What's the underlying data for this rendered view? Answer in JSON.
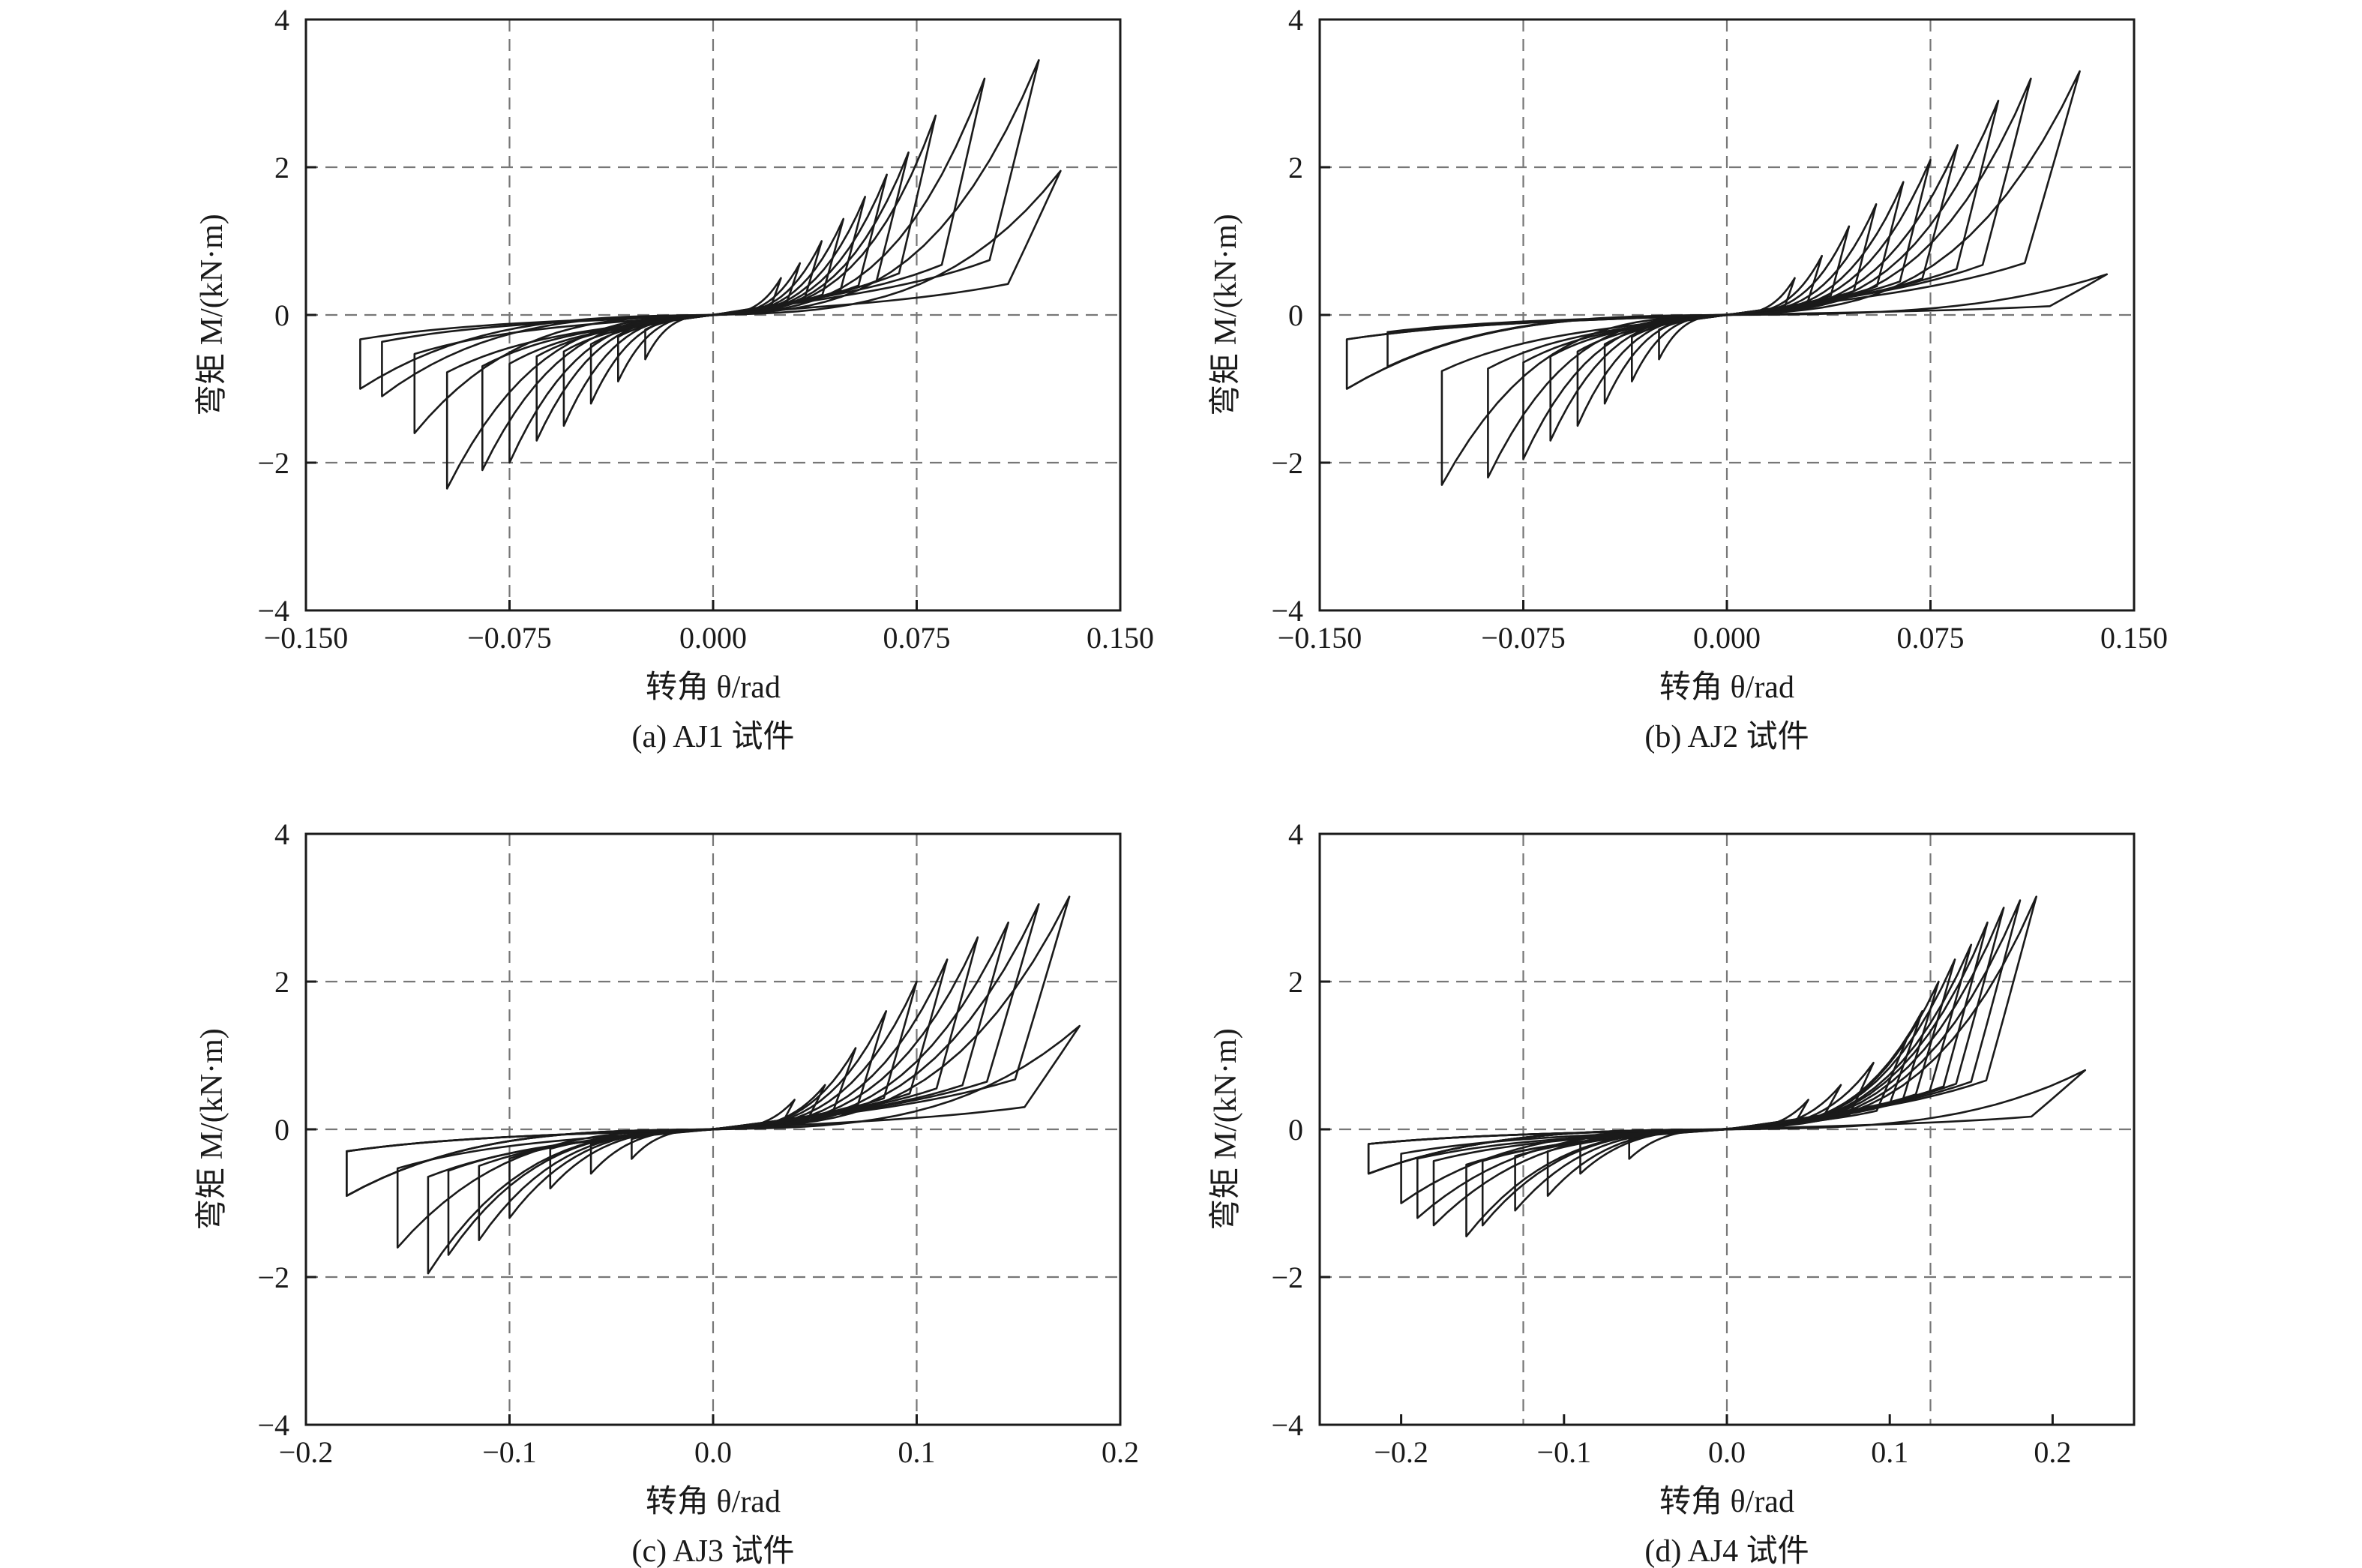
{
  "chart_data": [
    {
      "type": "line",
      "caption": "(a) AJ1 试件",
      "xlabel": "转角 θ/rad",
      "ylabel": "弯矩 M/(kN·m)",
      "xlim": [
        -0.15,
        0.15
      ],
      "ylim": [
        -4,
        4
      ],
      "xticks": [
        -0.15,
        -0.075,
        0,
        0.075,
        0.15
      ],
      "xtick_labels": [
        "−0.150",
        "−0.075",
        "0.000",
        "0.075",
        "0.150"
      ],
      "yticks": [
        -4,
        -2,
        0,
        2,
        4
      ],
      "ytick_labels": [
        "−4",
        "−2",
        "0",
        "2",
        "4"
      ],
      "grid": true,
      "series": [
        {
          "amplitudes": [
            0.025,
            0.032,
            0.04,
            0.048,
            0.056,
            0.064,
            0.072,
            0.082,
            0.1,
            0.12,
            0.128
          ],
          "positive_peaks": [
            0.5,
            0.7,
            1.0,
            1.3,
            1.6,
            1.9,
            2.2,
            2.7,
            3.2,
            3.45,
            1.95
          ],
          "negative_amplitudes": [
            -0.025,
            -0.035,
            -0.045,
            -0.055,
            -0.065,
            -0.075,
            -0.085,
            -0.098,
            -0.11,
            -0.122,
            -0.13
          ],
          "negative_peaks": [
            -0.6,
            -0.9,
            -1.2,
            -1.5,
            -1.7,
            -2.0,
            -2.1,
            -2.35,
            -1.6,
            -1.1,
            -1.0
          ]
        }
      ]
    },
    {
      "type": "line",
      "caption": "(b) AJ2 试件",
      "xlabel": "转角 θ/rad",
      "ylabel": "弯矩 M/(kN·m)",
      "xlim": [
        -0.15,
        0.15
      ],
      "ylim": [
        -4,
        4
      ],
      "xticks": [
        -0.15,
        -0.075,
        0,
        0.075,
        0.15
      ],
      "xtick_labels": [
        "−0.150",
        "−0.075",
        "0.000",
        "0.075",
        "0.150"
      ],
      "yticks": [
        -4,
        -2,
        0,
        2,
        4
      ],
      "ytick_labels": [
        "−4",
        "−2",
        "0",
        "2",
        "4"
      ],
      "grid": true,
      "series": [
        {
          "amplitudes": [
            0.025,
            0.035,
            0.045,
            0.055,
            0.065,
            0.075,
            0.085,
            0.1,
            0.112,
            0.13,
            0.14
          ],
          "positive_peaks": [
            0.5,
            0.8,
            1.2,
            1.5,
            1.8,
            2.1,
            2.3,
            2.9,
            3.2,
            3.3,
            0.55
          ],
          "negative_amplitudes": [
            -0.025,
            -0.035,
            -0.045,
            -0.055,
            -0.065,
            -0.075,
            -0.088,
            -0.105,
            -0.125,
            -0.14
          ],
          "negative_peaks": [
            -0.6,
            -0.9,
            -1.2,
            -1.5,
            -1.7,
            -1.95,
            -2.2,
            -2.3,
            -0.7,
            -1.0
          ]
        }
      ]
    },
    {
      "type": "line",
      "caption": "(c) AJ3 试件",
      "xlabel": "转角 θ/rad",
      "ylabel": "弯矩 M/(kN·m)",
      "xlim": [
        -0.2,
        0.2
      ],
      "ylim": [
        -4,
        4
      ],
      "xticks": [
        -0.2,
        -0.1,
        0,
        0.1,
        0.2
      ],
      "xtick_labels": [
        "−0.2",
        "−0.1",
        "0.0",
        "0.1",
        "0.2"
      ],
      "yticks": [
        -4,
        -2,
        0,
        2,
        4
      ],
      "ytick_labels": [
        "−4",
        "−2",
        "0",
        "2",
        "4"
      ],
      "grid": true,
      "series": [
        {
          "amplitudes": [
            0.04,
            0.055,
            0.07,
            0.085,
            0.1,
            0.115,
            0.13,
            0.145,
            0.16,
            0.175,
            0.18
          ],
          "positive_peaks": [
            0.4,
            0.6,
            1.1,
            1.6,
            2.0,
            2.3,
            2.6,
            2.8,
            3.05,
            3.15,
            1.4
          ],
          "negative_amplitudes": [
            -0.04,
            -0.06,
            -0.08,
            -0.1,
            -0.115,
            -0.13,
            -0.14,
            -0.155,
            -0.18
          ],
          "negative_peaks": [
            -0.4,
            -0.6,
            -0.8,
            -1.2,
            -1.5,
            -1.7,
            -1.95,
            -1.6,
            -0.9
          ]
        }
      ]
    },
    {
      "type": "line",
      "caption": "(d) AJ4 试件",
      "xlabel": "转角 θ/rad",
      "ylabel": "弯矩 M/(kN·m)",
      "xlim": [
        -0.25,
        0.25
      ],
      "ylim": [
        -4,
        4
      ],
      "xticks": [
        -0.2,
        -0.1,
        0,
        0.1,
        0.2
      ],
      "xtick_labels": [
        "−0.2",
        "−0.1",
        "0.0",
        "0.1",
        "0.2"
      ],
      "yticks": [
        -4,
        -2,
        0,
        2,
        4
      ],
      "ytick_labels": [
        "−4",
        "−2",
        "0",
        "2",
        "4"
      ],
      "gridlines_x": [
        -0.125,
        0.125
      ],
      "grid": true,
      "series": [
        {
          "amplitudes": [
            0.05,
            0.07,
            0.09,
            0.11,
            0.12,
            0.13,
            0.14,
            0.15,
            0.16,
            0.17,
            0.18,
            0.19,
            0.22
          ],
          "positive_peaks": [
            0.4,
            0.6,
            0.9,
            1.2,
            1.6,
            2.0,
            2.3,
            2.5,
            2.8,
            3.0,
            3.1,
            3.15,
            0.8
          ],
          "negative_amplitudes": [
            -0.06,
            -0.09,
            -0.11,
            -0.13,
            -0.15,
            -0.16,
            -0.18,
            -0.19,
            -0.2,
            -0.22
          ],
          "negative_peaks": [
            -0.4,
            -0.6,
            -0.9,
            -1.1,
            -1.3,
            -1.45,
            -1.3,
            -1.2,
            -1.0,
            -0.6
          ]
        }
      ]
    }
  ]
}
